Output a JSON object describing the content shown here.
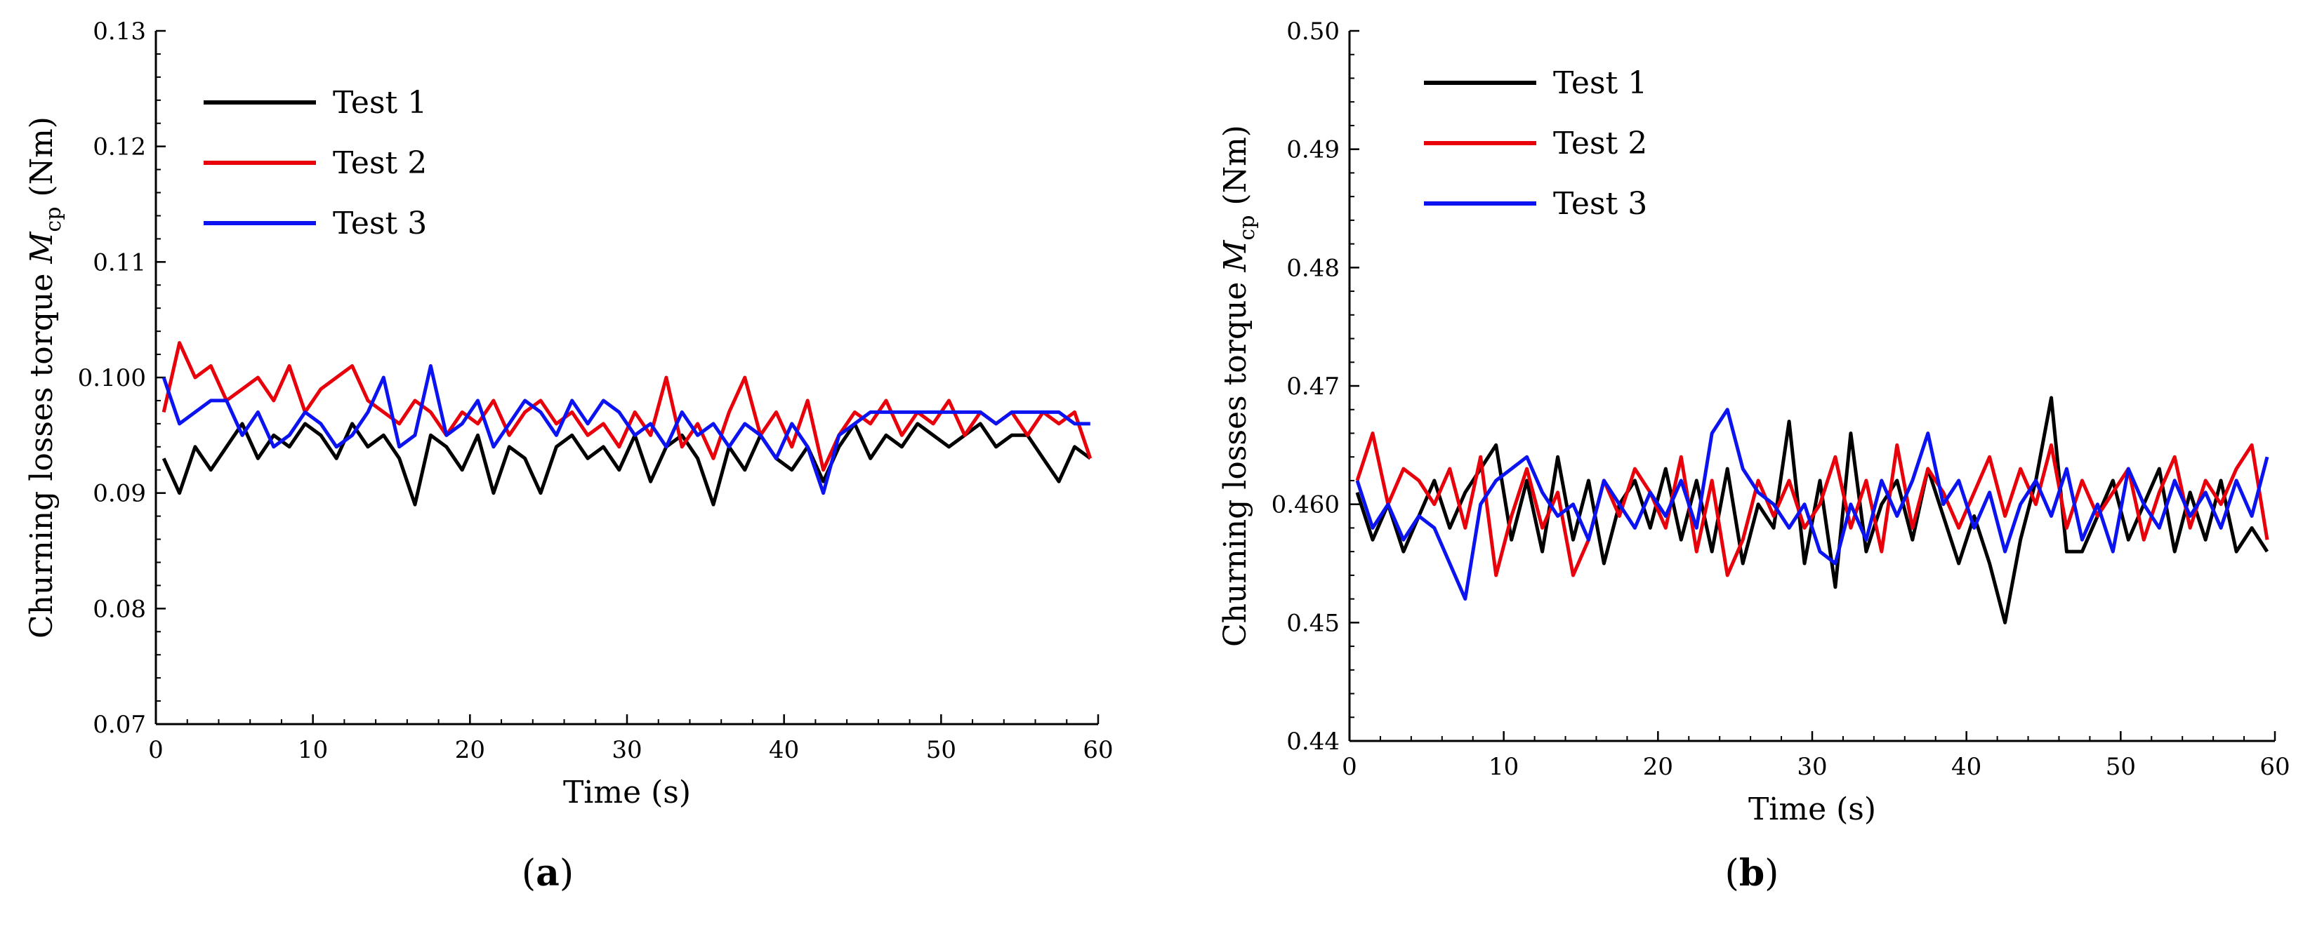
{
  "figure": {
    "panels": [
      {
        "letter": "a",
        "prefix": "(",
        "suffix": ")"
      },
      {
        "letter": "b",
        "prefix": "(",
        "suffix": ")"
      }
    ]
  },
  "chart_data": [
    {
      "type": "line",
      "panel": "(a)",
      "title": "",
      "xlabel": "Time (s)",
      "ylabel_parts": {
        "text": "Churning losses torque ",
        "symbol": "M",
        "subscript": "cp",
        "unit": " (Nm)"
      },
      "xlim": [
        0,
        60
      ],
      "ylim": [
        0.07,
        0.13
      ],
      "xticks": [
        0,
        10,
        20,
        30,
        40,
        50,
        60
      ],
      "xtick_labels": [
        "0",
        "10",
        "20",
        "30",
        "40",
        "50",
        "60"
      ],
      "yticks": [
        0.07,
        0.08,
        0.09,
        0.1,
        0.11,
        0.12,
        0.13
      ],
      "ytick_labels": [
        "0.07",
        "0.08",
        "0.09",
        "0.100",
        "0.11",
        "0.12",
        "0.13"
      ],
      "legend_position": "top-left",
      "series": [
        {
          "name": "Test 1",
          "color": "#000000",
          "x": [
            0.5,
            1.5,
            2.5,
            3.5,
            4.5,
            5.5,
            6.5,
            7.5,
            8.5,
            9.5,
            10.5,
            11.5,
            12.5,
            13.5,
            14.5,
            15.5,
            16.5,
            17.5,
            18.5,
            19.5,
            20.5,
            21.5,
            22.5,
            23.5,
            24.5,
            25.5,
            26.5,
            27.5,
            28.5,
            29.5,
            30.5,
            31.5,
            32.5,
            33.5,
            34.5,
            35.5,
            36.5,
            37.5,
            38.5,
            39.5,
            40.5,
            41.5,
            42.5,
            43.5,
            44.5,
            45.5,
            46.5,
            47.5,
            48.5,
            49.5,
            50.5,
            51.5,
            52.5,
            53.5,
            54.5,
            55.5,
            56.5,
            57.5,
            58.5,
            59.5
          ],
          "values": [
            0.093,
            0.09,
            0.094,
            0.092,
            0.094,
            0.096,
            0.093,
            0.095,
            0.094,
            0.096,
            0.095,
            0.093,
            0.096,
            0.094,
            0.095,
            0.093,
            0.089,
            0.095,
            0.094,
            0.092,
            0.095,
            0.09,
            0.094,
            0.093,
            0.09,
            0.094,
            0.095,
            0.093,
            0.094,
            0.092,
            0.095,
            0.091,
            0.094,
            0.095,
            0.093,
            0.089,
            0.094,
            0.092,
            0.095,
            0.093,
            0.092,
            0.094,
            0.091,
            0.094,
            0.096,
            0.093,
            0.095,
            0.094,
            0.096,
            0.095,
            0.094,
            0.095,
            0.096,
            0.094,
            0.095,
            0.095,
            0.093,
            0.091,
            0.094,
            0.093
          ]
        },
        {
          "name": "Test 2",
          "color": "#e8000b",
          "x": [
            0.5,
            1.5,
            2.5,
            3.5,
            4.5,
            5.5,
            6.5,
            7.5,
            8.5,
            9.5,
            10.5,
            11.5,
            12.5,
            13.5,
            14.5,
            15.5,
            16.5,
            17.5,
            18.5,
            19.5,
            20.5,
            21.5,
            22.5,
            23.5,
            24.5,
            25.5,
            26.5,
            27.5,
            28.5,
            29.5,
            30.5,
            31.5,
            32.5,
            33.5,
            34.5,
            35.5,
            36.5,
            37.5,
            38.5,
            39.5,
            40.5,
            41.5,
            42.5,
            43.5,
            44.5,
            45.5,
            46.5,
            47.5,
            48.5,
            49.5,
            50.5,
            51.5,
            52.5,
            53.5,
            54.5,
            55.5,
            56.5,
            57.5,
            58.5,
            59.5
          ],
          "values": [
            0.097,
            0.103,
            0.1,
            0.101,
            0.098,
            0.099,
            0.1,
            0.098,
            0.101,
            0.097,
            0.099,
            0.1,
            0.101,
            0.098,
            0.097,
            0.096,
            0.098,
            0.097,
            0.095,
            0.097,
            0.096,
            0.098,
            0.095,
            0.097,
            0.098,
            0.096,
            0.097,
            0.095,
            0.096,
            0.094,
            0.097,
            0.095,
            0.1,
            0.094,
            0.096,
            0.093,
            0.097,
            0.1,
            0.095,
            0.097,
            0.094,
            0.098,
            0.092,
            0.095,
            0.097,
            0.096,
            0.098,
            0.095,
            0.097,
            0.096,
            0.098,
            0.095,
            0.097,
            0.096,
            0.097,
            0.095,
            0.097,
            0.096,
            0.097,
            0.093
          ]
        },
        {
          "name": "Test 3",
          "color": "#0b14f0",
          "x": [
            0.5,
            1.5,
            2.5,
            3.5,
            4.5,
            5.5,
            6.5,
            7.5,
            8.5,
            9.5,
            10.5,
            11.5,
            12.5,
            13.5,
            14.5,
            15.5,
            16.5,
            17.5,
            18.5,
            19.5,
            20.5,
            21.5,
            22.5,
            23.5,
            24.5,
            25.5,
            26.5,
            27.5,
            28.5,
            29.5,
            30.5,
            31.5,
            32.5,
            33.5,
            34.5,
            35.5,
            36.5,
            37.5,
            38.5,
            39.5,
            40.5,
            41.5,
            42.5,
            43.5,
            44.5,
            45.5,
            46.5,
            47.5,
            48.5,
            49.5,
            50.5,
            51.5,
            52.5,
            53.5,
            54.5,
            55.5,
            56.5,
            57.5,
            58.5,
            59.5
          ],
          "values": [
            0.1,
            0.096,
            0.097,
            0.098,
            0.098,
            0.095,
            0.097,
            0.094,
            0.095,
            0.097,
            0.096,
            0.094,
            0.095,
            0.097,
            0.1,
            0.094,
            0.095,
            0.101,
            0.095,
            0.096,
            0.098,
            0.094,
            0.096,
            0.098,
            0.097,
            0.095,
            0.098,
            0.096,
            0.098,
            0.097,
            0.095,
            0.096,
            0.094,
            0.097,
            0.095,
            0.096,
            0.094,
            0.096,
            0.095,
            0.093,
            0.096,
            0.094,
            0.09,
            0.095,
            0.096,
            0.097,
            0.097,
            0.097,
            0.097,
            0.097,
            0.097,
            0.097,
            0.097,
            0.096,
            0.097,
            0.097,
            0.097,
            0.097,
            0.096,
            0.096
          ]
        }
      ]
    },
    {
      "type": "line",
      "panel": "(b)",
      "title": "",
      "xlabel": "Time (s)",
      "ylabel_parts": {
        "text": "Churning losses torque ",
        "symbol": "M",
        "subscript": "cp",
        "unit": " (Nm)"
      },
      "xlim": [
        0,
        60
      ],
      "ylim": [
        0.44,
        0.5
      ],
      "xticks": [
        0,
        10,
        20,
        30,
        40,
        50,
        60
      ],
      "xtick_labels": [
        "0",
        "10",
        "20",
        "30",
        "40",
        "50",
        "60"
      ],
      "yticks": [
        0.44,
        0.45,
        0.46,
        0.47,
        0.48,
        0.49,
        0.5
      ],
      "ytick_labels": [
        "0.44",
        "0.45",
        "0.460",
        "0.47",
        "0.48",
        "0.49",
        "0.50"
      ],
      "legend_position": "top-left",
      "series": [
        {
          "name": "Test 1",
          "color": "#000000",
          "x": [
            0.5,
            1.5,
            2.5,
            3.5,
            4.5,
            5.5,
            6.5,
            7.5,
            8.5,
            9.5,
            10.5,
            11.5,
            12.5,
            13.5,
            14.5,
            15.5,
            16.5,
            17.5,
            18.5,
            19.5,
            20.5,
            21.5,
            22.5,
            23.5,
            24.5,
            25.5,
            26.5,
            27.5,
            28.5,
            29.5,
            30.5,
            31.5,
            32.5,
            33.5,
            34.5,
            35.5,
            36.5,
            37.5,
            38.5,
            39.5,
            40.5,
            41.5,
            42.5,
            43.5,
            44.5,
            45.5,
            46.5,
            47.5,
            48.5,
            49.5,
            50.5,
            51.5,
            52.5,
            53.5,
            54.5,
            55.5,
            56.5,
            57.5,
            58.5,
            59.5
          ],
          "values": [
            0.461,
            0.457,
            0.46,
            0.456,
            0.459,
            0.462,
            0.458,
            0.461,
            0.463,
            0.465,
            0.457,
            0.462,
            0.456,
            0.464,
            0.457,
            0.462,
            0.455,
            0.46,
            0.462,
            0.458,
            0.463,
            0.457,
            0.462,
            0.456,
            0.463,
            0.455,
            0.46,
            0.458,
            0.467,
            0.455,
            0.462,
            0.453,
            0.466,
            0.456,
            0.46,
            0.462,
            0.457,
            0.463,
            0.459,
            0.455,
            0.459,
            0.455,
            0.45,
            0.457,
            0.462,
            0.469,
            0.456,
            0.456,
            0.459,
            0.462,
            0.457,
            0.46,
            0.463,
            0.456,
            0.461,
            0.457,
            0.462,
            0.456,
            0.458,
            0.456
          ]
        },
        {
          "name": "Test 2",
          "color": "#e8000b",
          "x": [
            0.5,
            1.5,
            2.5,
            3.5,
            4.5,
            5.5,
            6.5,
            7.5,
            8.5,
            9.5,
            10.5,
            11.5,
            12.5,
            13.5,
            14.5,
            15.5,
            16.5,
            17.5,
            18.5,
            19.5,
            20.5,
            21.5,
            22.5,
            23.5,
            24.5,
            25.5,
            26.5,
            27.5,
            28.5,
            29.5,
            30.5,
            31.5,
            32.5,
            33.5,
            34.5,
            35.5,
            36.5,
            37.5,
            38.5,
            39.5,
            40.5,
            41.5,
            42.5,
            43.5,
            44.5,
            45.5,
            46.5,
            47.5,
            48.5,
            49.5,
            50.5,
            51.5,
            52.5,
            53.5,
            54.5,
            55.5,
            56.5,
            57.5,
            58.5,
            59.5
          ],
          "values": [
            0.462,
            0.466,
            0.46,
            0.463,
            0.462,
            0.46,
            0.463,
            0.458,
            0.464,
            0.454,
            0.459,
            0.463,
            0.458,
            0.461,
            0.454,
            0.457,
            0.462,
            0.459,
            0.463,
            0.461,
            0.458,
            0.464,
            0.456,
            0.462,
            0.454,
            0.457,
            0.462,
            0.459,
            0.462,
            0.458,
            0.46,
            0.464,
            0.458,
            0.462,
            0.456,
            0.465,
            0.458,
            0.463,
            0.461,
            0.458,
            0.461,
            0.464,
            0.459,
            0.463,
            0.46,
            0.465,
            0.458,
            0.462,
            0.459,
            0.461,
            0.463,
            0.457,
            0.461,
            0.464,
            0.458,
            0.462,
            0.46,
            0.463,
            0.465,
            0.457
          ]
        },
        {
          "name": "Test 3",
          "color": "#0b14f0",
          "x": [
            0.5,
            1.5,
            2.5,
            3.5,
            4.5,
            5.5,
            6.5,
            7.5,
            8.5,
            9.5,
            10.5,
            11.5,
            12.5,
            13.5,
            14.5,
            15.5,
            16.5,
            17.5,
            18.5,
            19.5,
            20.5,
            21.5,
            22.5,
            23.5,
            24.5,
            25.5,
            26.5,
            27.5,
            28.5,
            29.5,
            30.5,
            31.5,
            32.5,
            33.5,
            34.5,
            35.5,
            36.5,
            37.5,
            38.5,
            39.5,
            40.5,
            41.5,
            42.5,
            43.5,
            44.5,
            45.5,
            46.5,
            47.5,
            48.5,
            49.5,
            50.5,
            51.5,
            52.5,
            53.5,
            54.5,
            55.5,
            56.5,
            57.5,
            58.5,
            59.5
          ],
          "values": [
            0.462,
            0.458,
            0.46,
            0.457,
            0.459,
            0.458,
            0.455,
            0.452,
            0.46,
            0.462,
            0.463,
            0.464,
            0.461,
            0.459,
            0.46,
            0.457,
            0.462,
            0.46,
            0.458,
            0.461,
            0.459,
            0.462,
            0.458,
            0.466,
            0.468,
            0.463,
            0.461,
            0.46,
            0.458,
            0.46,
            0.456,
            0.455,
            0.46,
            0.457,
            0.462,
            0.459,
            0.462,
            0.466,
            0.46,
            0.462,
            0.458,
            0.461,
            0.456,
            0.46,
            0.462,
            0.459,
            0.463,
            0.457,
            0.46,
            0.456,
            0.463,
            0.46,
            0.458,
            0.462,
            0.459,
            0.461,
            0.458,
            0.462,
            0.459,
            0.464
          ]
        }
      ]
    }
  ]
}
